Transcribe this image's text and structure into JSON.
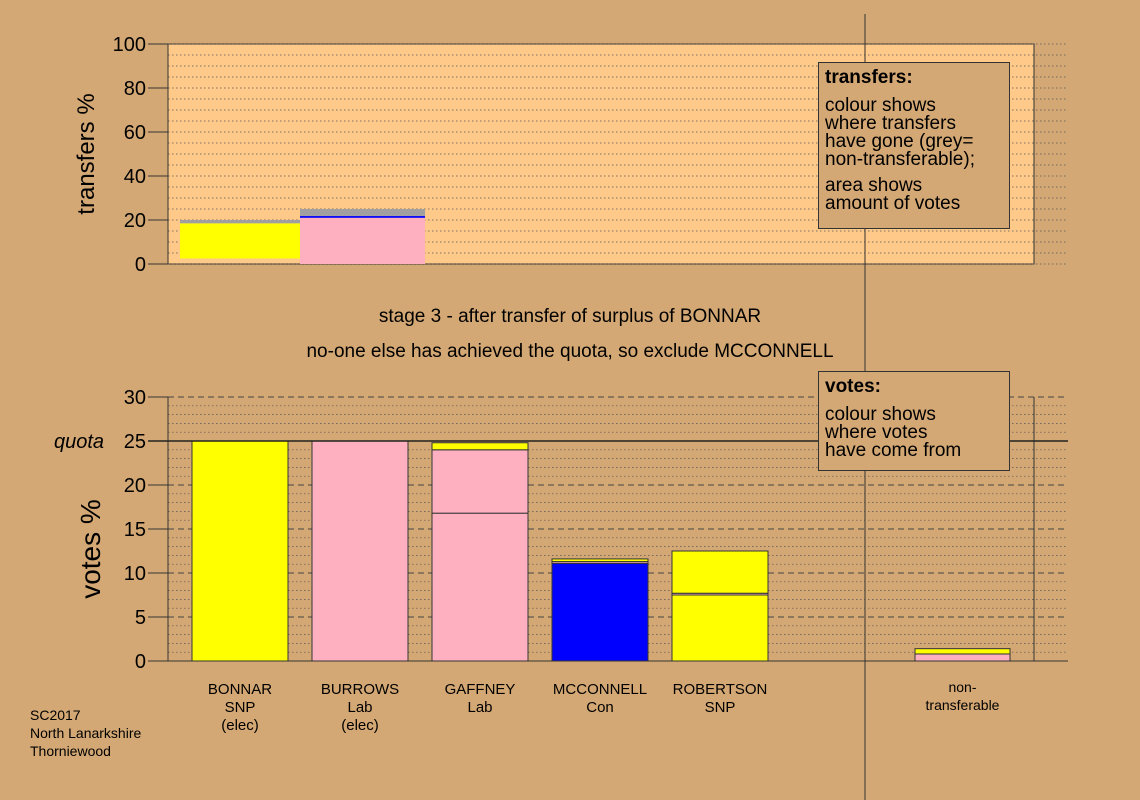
{
  "stage_line1": "stage 3 - after transfer of surplus of BONNAR",
  "stage_line2": "no-one else has achieved the quota, so exclude MCCONNELL",
  "footer": {
    "line1": "SC2017",
    "line2": "North Lanarkshire",
    "line3": "Thorniewood"
  },
  "legend_transfers": {
    "title": "transfers:",
    "lines": [
      "colour shows",
      "where transfers",
      "have gone (grey=",
      "non-transferable);"
    ],
    "lines2": [
      "area shows",
      "amount of votes"
    ]
  },
  "legend_votes": {
    "title": "votes:",
    "lines": [
      "colour shows",
      "where votes",
      "have come from"
    ]
  },
  "colors": {
    "background": "#d4a874",
    "panel": "#ffc98a",
    "SNP": "#ffff00",
    "Lab": "#ffb0c0",
    "Con": "#0000ff",
    "nontransferable": "#a0a0a0"
  },
  "chart_data": [
    {
      "type": "bar",
      "ylabel": "transfers %",
      "ylim": [
        0,
        100
      ],
      "yticks": [
        0,
        20,
        40,
        60,
        80,
        100
      ],
      "bars": [
        {
          "segments": [
            {
              "color_key": "SNP",
              "from": 2.5,
              "to": 18.5
            },
            {
              "color_key": "nontransferable",
              "from": 18.5,
              "to": 20
            }
          ]
        },
        {
          "segments": [
            {
              "color_key": "Lab",
              "from": 0,
              "to": 21
            },
            {
              "color_key": "Con",
              "from": 21,
              "to": 21.8
            },
            {
              "color_key": "nontransferable",
              "from": 21.8,
              "to": 25
            }
          ]
        }
      ]
    },
    {
      "type": "bar",
      "ylabel": "votes %",
      "ylim": [
        0,
        30
      ],
      "yticks": [
        0,
        5,
        10,
        15,
        20,
        25,
        30
      ],
      "quota": 25,
      "quota_label": "quota",
      "categories": [
        {
          "name": "BONNAR",
          "party": "SNP",
          "note": "(elec)"
        },
        {
          "name": "BURROWS",
          "party": "Lab",
          "note": "(elec)"
        },
        {
          "name": "GAFFNEY",
          "party": "Lab",
          "note": ""
        },
        {
          "name": "MCCONNELL",
          "party": "Con",
          "note": ""
        },
        {
          "name": "ROBERTSON",
          "party": "SNP",
          "note": ""
        }
      ],
      "nontransferable_label": [
        "non-",
        "transferable"
      ],
      "stacks": [
        [
          {
            "color_key": "SNP",
            "value": 25.0
          }
        ],
        [
          {
            "color_key": "Lab",
            "value": 25.0
          }
        ],
        [
          {
            "color_key": "Lab",
            "value": 16.8
          },
          {
            "color_key": "Lab",
            "value": 7.2
          },
          {
            "color_key": "SNP",
            "value": 0.8
          }
        ],
        [
          {
            "color_key": "Con",
            "value": 11.1
          },
          {
            "color_key": "Lab",
            "value": 0.2
          },
          {
            "color_key": "SNP",
            "value": 0.3
          }
        ],
        [
          {
            "color_key": "SNP",
            "value": 7.5
          },
          {
            "color_key": "Lab",
            "value": 0.2
          },
          {
            "color_key": "SNP",
            "value": 4.8
          }
        ]
      ],
      "nontransferable_stack": [
        {
          "color_key": "Lab",
          "value": 0.8
        },
        {
          "color_key": "SNP",
          "value": 0.6
        }
      ]
    }
  ]
}
